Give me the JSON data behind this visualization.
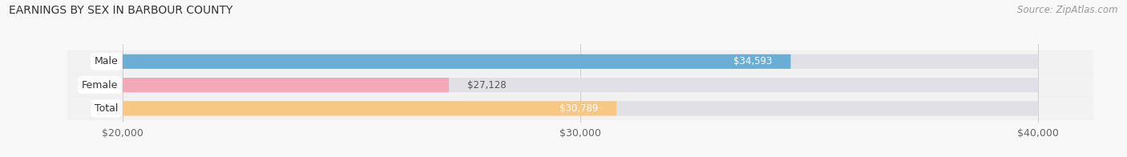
{
  "title": "EARNINGS BY SEX IN BARBOUR COUNTY",
  "source": "Source: ZipAtlas.com",
  "categories": [
    "Male",
    "Female",
    "Total"
  ],
  "values": [
    34593,
    27128,
    30789
  ],
  "val_labels": [
    "$34,593",
    "$27,128",
    "$30,789"
  ],
  "bar_colors": [
    "#6aaed6",
    "#f4a9b8",
    "#f9c784"
  ],
  "bar_bg_color": "#e8e8ec",
  "xmin": 20000,
  "xmax": 40000,
  "xticks": [
    20000,
    30000,
    40000
  ],
  "xtick_labels": [
    "$20,000",
    "$30,000",
    "$40,000"
  ],
  "title_fontsize": 10,
  "source_fontsize": 8.5,
  "bar_label_fontsize": 8.5,
  "category_fontsize": 9,
  "tick_fontsize": 9,
  "background_color": "#f8f8f8",
  "plot_bg_color": "#f0f0f4"
}
